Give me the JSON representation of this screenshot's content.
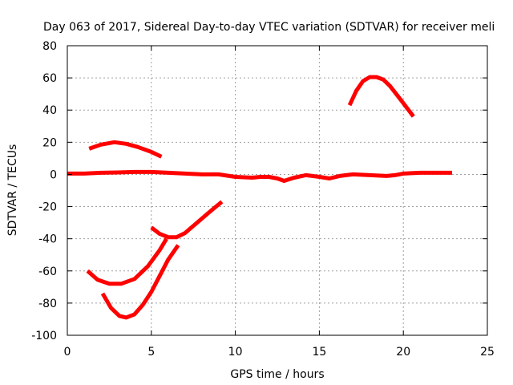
{
  "chart_data": {
    "type": "line",
    "title": "Day 063 of 2017, Sidereal Day-to-day VTEC variation (SDTVAR) for receiver meli",
    "xlabel": "GPS time / hours",
    "ylabel": "SDTVAR / TECUs",
    "xlim": [
      0,
      25
    ],
    "ylim": [
      -100,
      80
    ],
    "xticks": [
      0,
      5,
      10,
      15,
      20,
      25
    ],
    "yticks": [
      -100,
      -80,
      -60,
      -40,
      -20,
      0,
      20,
      40,
      60,
      80
    ],
    "grid": true,
    "series_color": "#ff0000",
    "series": [
      {
        "name": "main",
        "x": [
          0,
          1,
          2,
          3,
          4,
          5,
          6,
          7,
          8,
          9,
          10,
          11,
          11.5,
          12,
          12.5,
          12.9,
          13.5,
          14.2,
          15,
          15.6,
          16.2,
          17,
          18,
          19,
          19.5,
          20,
          21,
          22,
          22.9
        ],
        "y": [
          0.5,
          0.5,
          1,
          1.2,
          1.5,
          1.5,
          1,
          0.5,
          0,
          0,
          -1.5,
          -2,
          -1.5,
          -1.5,
          -2.5,
          -4,
          -2,
          -0.5,
          -1.5,
          -2.5,
          -1,
          0,
          -0.5,
          -1,
          -0.5,
          0.5,
          1,
          1,
          1
        ]
      },
      {
        "name": "s2",
        "x": [
          1.3,
          2,
          2.8,
          3.5,
          4.2,
          5,
          5.6
        ],
        "y": [
          16,
          18.5,
          20,
          19,
          17,
          14,
          11
        ]
      },
      {
        "name": "s3",
        "x": [
          16.8,
          17.2,
          17.6,
          18,
          18.4,
          18.8,
          19.2,
          19.8,
          20.6
        ],
        "y": [
          43,
          52,
          58,
          60.5,
          60.5,
          59,
          55,
          47,
          36
        ]
      },
      {
        "name": "s4",
        "x": [
          1.2,
          1.8,
          2.5,
          3.2,
          4,
          4.8,
          5.5,
          5.9
        ],
        "y": [
          -60,
          -65.5,
          -68,
          -68,
          -65,
          -57,
          -47,
          -40
        ]
      },
      {
        "name": "s5",
        "x": [
          2.1,
          2.6,
          3.1,
          3.5,
          4,
          4.5,
          5,
          5.5,
          6,
          6.6
        ],
        "y": [
          -74,
          -83,
          -88,
          -89,
          -87,
          -81,
          -73,
          -63,
          -53,
          -44
        ]
      },
      {
        "name": "s6",
        "x": [
          5,
          5.5,
          6,
          6.5,
          7,
          7.5,
          8,
          8.5,
          9.2
        ],
        "y": [
          -33,
          -37,
          -39,
          -39,
          -36.5,
          -32,
          -27.5,
          -23,
          -17
        ]
      }
    ]
  }
}
